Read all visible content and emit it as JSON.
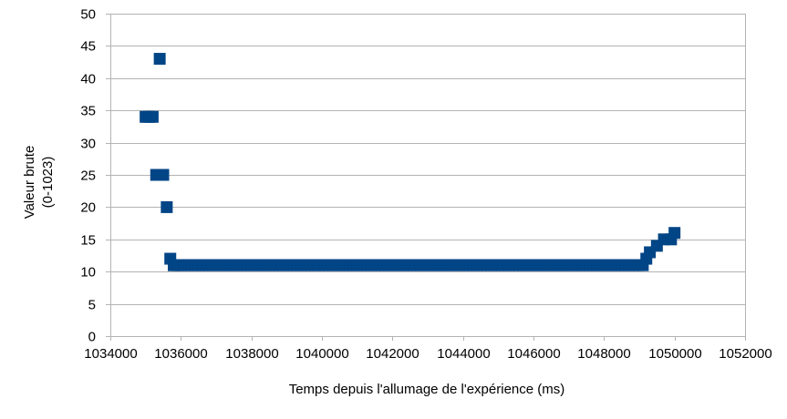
{
  "chart_data": {
    "type": "scatter",
    "title": "",
    "xlabel": "Temps depuis l'allumage de l'expérience (ms)",
    "ylabel_lines": [
      "Valeur brute",
      "(0-1023)"
    ],
    "xlim": [
      1034000,
      1052000
    ],
    "ylim": [
      0,
      50
    ],
    "x_ticks": [
      1034000,
      1036000,
      1038000,
      1040000,
      1042000,
      1044000,
      1046000,
      1048000,
      1050000,
      1052000
    ],
    "y_ticks": [
      0,
      5,
      10,
      15,
      20,
      25,
      30,
      35,
      40,
      45,
      50
    ],
    "grid": "horizontal",
    "legend": "none",
    "marker": "square",
    "series": [
      {
        "color": "#004586",
        "points": [
          {
            "x": 1035000,
            "y": 34
          },
          {
            "x": 1035100,
            "y": 34
          },
          {
            "x": 1035200,
            "y": 34
          },
          {
            "x": 1035300,
            "y": 25
          },
          {
            "x": 1035400,
            "y": 43
          },
          {
            "x": 1035400,
            "y": 25
          },
          {
            "x": 1035500,
            "y": 25
          },
          {
            "x": 1035600,
            "y": 20
          },
          {
            "x": 1035700,
            "y": 12
          },
          {
            "x": 1035800,
            "y": 11
          },
          {
            "x": 1049200,
            "y": 12
          },
          {
            "x": 1049300,
            "y": 13
          },
          {
            "x": 1049500,
            "y": 14
          },
          {
            "x": 1049700,
            "y": 15
          },
          {
            "x": 1049900,
            "y": 15
          },
          {
            "x": 1050000,
            "y": 16
          }
        ],
        "flat_run": {
          "x_start": 1035800,
          "x_end": 1049100,
          "step": 100,
          "y": 11
        }
      }
    ]
  }
}
